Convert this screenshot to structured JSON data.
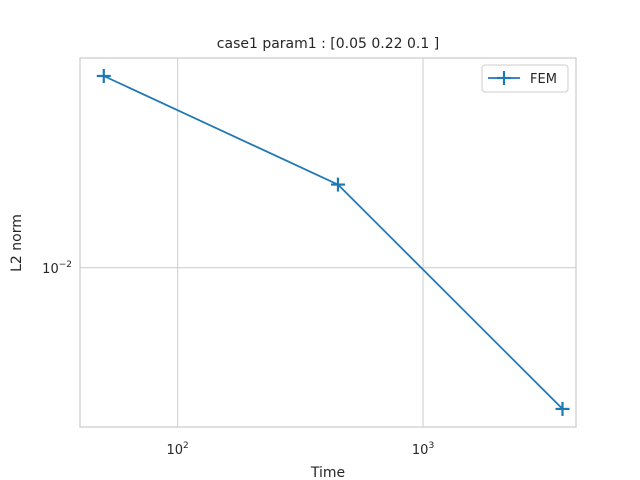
{
  "chart_data": {
    "type": "line",
    "title": "case1 param1 : [0.05 0.22 0.1 ]",
    "xlabel": "Time",
    "ylabel": "L2 norm",
    "x_scale": "log",
    "y_scale": "log",
    "xlim": [
      40,
      4200
    ],
    "ylim": [
      0.00305,
      0.0478
    ],
    "x_ticks": [
      {
        "value": 100,
        "base": "10",
        "exp": "2"
      },
      {
        "value": 1000,
        "base": "10",
        "exp": "3"
      }
    ],
    "y_ticks": [
      {
        "value": 0.01,
        "base": "10",
        "exp": "−2"
      }
    ],
    "grid": true,
    "legend": {
      "position": "top-right"
    },
    "series": [
      {
        "name": "FEM",
        "color": "#1f77b4",
        "marker": "plus",
        "x": [
          50,
          450,
          3700
        ],
        "y": [
          0.0418,
          0.0186,
          0.00349
        ]
      }
    ]
  }
}
